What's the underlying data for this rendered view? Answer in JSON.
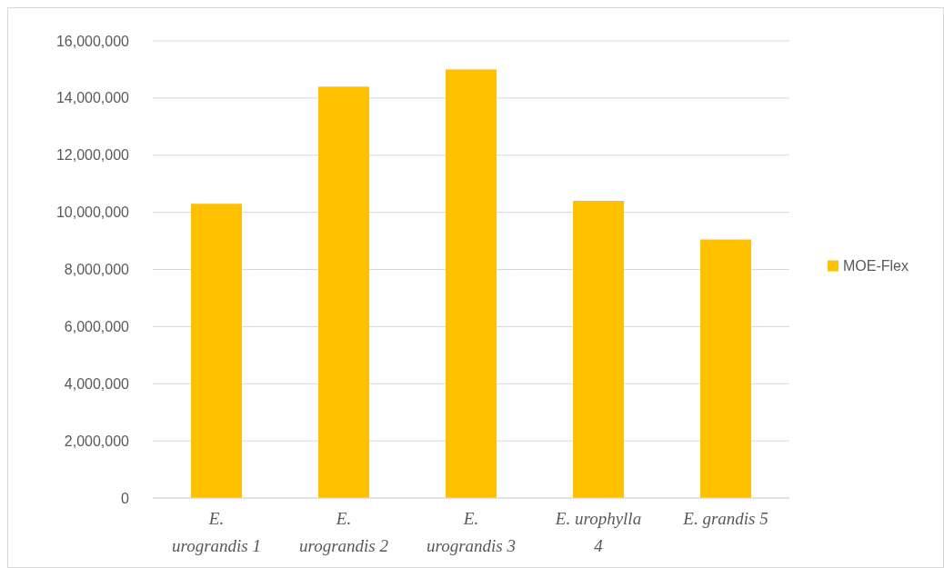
{
  "chart_data": {
    "type": "bar",
    "categories": [
      "E. urograndis 1",
      "E. urograndis 2",
      "E. urograndis 3",
      "E. urophylla 4",
      "E. grandis 5"
    ],
    "series": [
      {
        "name": "MOE-Flex",
        "color": "#ffc000",
        "values": [
          10300000,
          14400000,
          15000000,
          10400000,
          9050000
        ]
      }
    ],
    "ylim": [
      0,
      16000000
    ],
    "yticks": [
      {
        "value": 0,
        "label": "0"
      },
      {
        "value": 2000000,
        "label": "2,000,000"
      },
      {
        "value": 4000000,
        "label": "4,000,000"
      },
      {
        "value": 6000000,
        "label": "6,000,000"
      },
      {
        "value": 8000000,
        "label": "8,000,000"
      },
      {
        "value": 10000000,
        "label": "10,000,000"
      },
      {
        "value": 12000000,
        "label": "12,000,000"
      },
      {
        "value": 14000000,
        "label": "14,000,000"
      },
      {
        "value": 16000000,
        "label": "16,000,000"
      }
    ],
    "grid": "y",
    "legend": "right"
  }
}
